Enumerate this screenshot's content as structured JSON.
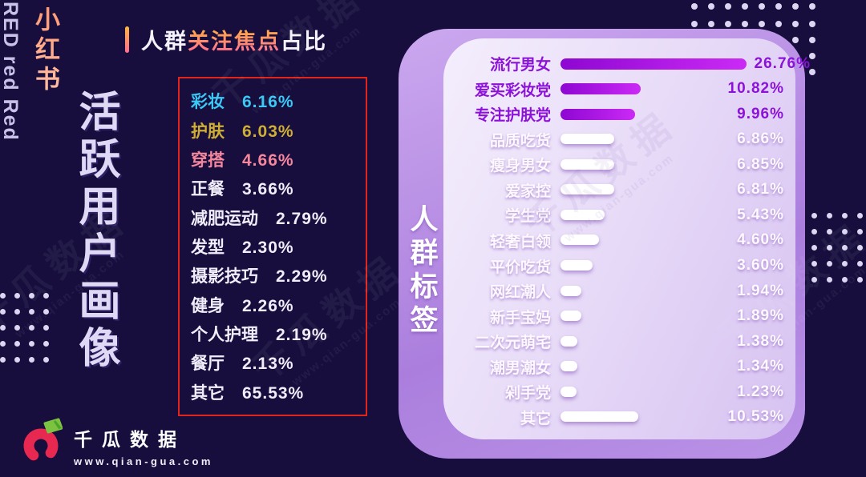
{
  "brand": {
    "latin": "RED red Red",
    "cn": "小红书",
    "main_title": "活跃用户画像"
  },
  "focus_section": {
    "title": {
      "prefix": "人群",
      "highlight": "关注焦点",
      "suffix": "占比"
    },
    "items": [
      {
        "label": "彩妆",
        "value": "6.16%",
        "color": "#3bc8f5"
      },
      {
        "label": "护肤",
        "value": "6.03%",
        "color": "#cfae35"
      },
      {
        "label": "穿搭",
        "value": "4.66%",
        "color": "#f5879c"
      },
      {
        "label": "正餐",
        "value": "3.66%",
        "color": "#f1edfa"
      },
      {
        "label": "减肥运动",
        "value": "2.79%",
        "color": "#f1edfa"
      },
      {
        "label": "发型",
        "value": "2.30%",
        "color": "#f1edfa"
      },
      {
        "label": "摄影技巧",
        "value": "2.29%",
        "color": "#f1edfa"
      },
      {
        "label": "健身",
        "value": "2.26%",
        "color": "#f1edfa"
      },
      {
        "label": "个人护理",
        "value": "2.19%",
        "color": "#f1edfa"
      },
      {
        "label": "餐厅",
        "value": "2.13%",
        "color": "#f1edfa"
      },
      {
        "label": "其它",
        "value": "65.53%",
        "color": "#f1edfa"
      }
    ]
  },
  "tags_panel": {
    "side_label": "人群标签",
    "rows": [
      {
        "label": "流行男女",
        "value": 26.76,
        "display": "26.76%",
        "highlight": true
      },
      {
        "label": "爱买彩妆党",
        "value": 10.82,
        "display": "10.82%",
        "highlight": true
      },
      {
        "label": "专注护肤党",
        "value": 9.96,
        "display": "9.96%",
        "highlight": true
      },
      {
        "label": "品质吃货",
        "value": 6.86,
        "display": "6.86%",
        "highlight": false
      },
      {
        "label": "瘦身男女",
        "value": 6.85,
        "display": "6.85%",
        "highlight": false
      },
      {
        "label": "爱家控",
        "value": 6.81,
        "display": "6.81%",
        "highlight": false
      },
      {
        "label": "学生党",
        "value": 5.43,
        "display": "5.43%",
        "highlight": false
      },
      {
        "label": "轻奢白领",
        "value": 4.6,
        "display": "4.60%",
        "highlight": false
      },
      {
        "label": "平价吃货",
        "value": 3.6,
        "display": "3.60%",
        "highlight": false
      },
      {
        "label": "网红潮人",
        "value": 1.94,
        "display": "1.94%",
        "highlight": false
      },
      {
        "label": "新手宝妈",
        "value": 1.89,
        "display": "1.89%",
        "highlight": false
      },
      {
        "label": "二次元萌宅",
        "value": 1.38,
        "display": "1.38%",
        "highlight": false
      },
      {
        "label": "潮男潮女",
        "value": 1.34,
        "display": "1.34%",
        "highlight": false
      },
      {
        "label": "剁手党",
        "value": 1.23,
        "display": "1.23%",
        "highlight": false
      },
      {
        "label": "其它",
        "value": 10.53,
        "display": "10.53%",
        "highlight": false
      }
    ]
  },
  "logo": {
    "name": "千瓜数据",
    "url": "www.qian-gua.com"
  },
  "watermark": {
    "big": "千瓜数据",
    "small": "www.qian-gua.com"
  },
  "colors": {
    "background": "#170e3e",
    "accent_red_box": "#e1251b",
    "highlight_purple": "#8d12d9",
    "bar_purple_gradient": [
      "#8e07d2",
      "#cb2af5"
    ],
    "title_accent_gradient": [
      "#ffb43e",
      "#ff6e8e"
    ]
  },
  "chart_data": [
    {
      "type": "table",
      "title": "人群关注焦点占比",
      "categories": [
        "彩妆",
        "护肤",
        "穿搭",
        "正餐",
        "减肥运动",
        "发型",
        "摄影技巧",
        "健身",
        "个人护理",
        "餐厅",
        "其它"
      ],
      "values": [
        6.16,
        6.03,
        4.66,
        3.66,
        2.79,
        2.3,
        2.29,
        2.26,
        2.19,
        2.13,
        65.53
      ],
      "unit": "%"
    },
    {
      "type": "bar",
      "orientation": "horizontal",
      "title": "人群标签",
      "categories": [
        "流行男女",
        "爱买彩妆党",
        "专注护肤党",
        "品质吃货",
        "瘦身男女",
        "爱家控",
        "学生党",
        "轻奢白领",
        "平价吃货",
        "网红潮人",
        "新手宝妈",
        "二次元萌宅",
        "潮男潮女",
        "剁手党",
        "其它"
      ],
      "values": [
        26.76,
        10.82,
        9.96,
        6.86,
        6.85,
        6.81,
        5.43,
        4.6,
        3.6,
        1.94,
        1.89,
        1.38,
        1.34,
        1.23,
        10.53
      ],
      "unit": "%",
      "highlighted_categories": [
        "流行男女",
        "爱买彩妆党",
        "专注护肤党"
      ],
      "xlim": [
        0,
        26.76
      ],
      "grid": false,
      "value_labels": "right"
    }
  ]
}
